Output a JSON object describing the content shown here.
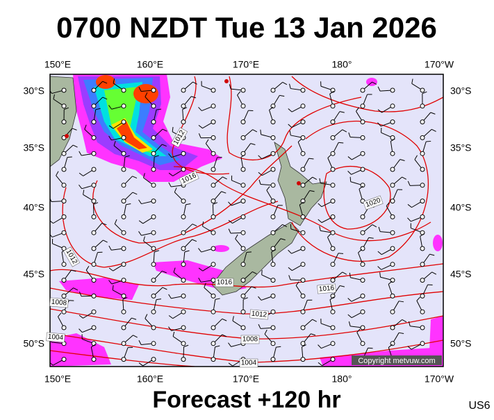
{
  "header": {
    "title": "0700 NZDT Tue 13 Jan 2026"
  },
  "map": {
    "lon_labels": [
      "150°E",
      "160°E",
      "170°E",
      "180°",
      "170°W"
    ],
    "lat_labels": [
      "30°S",
      "35°S",
      "40°S",
      "45°S",
      "50°S"
    ],
    "isobar_labels": [
      "1012",
      "1016",
      "1020",
      "1012",
      "1016",
      "1016",
      "1008",
      "1012",
      "1004",
      "1008",
      "1004"
    ],
    "copyright": "Copyright metvuw.com"
  },
  "footer": {
    "forecast": "Forecast +120 hr",
    "code": "US6"
  }
}
